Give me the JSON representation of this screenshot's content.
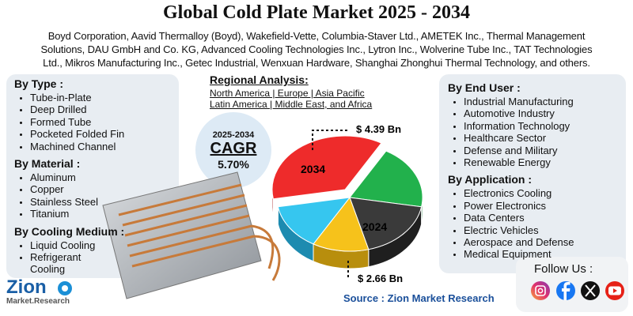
{
  "header": {
    "title": "Global Cold Plate Market 2025 - 2034",
    "companies": [
      "Boyd Corporation, Aavid Thermalloy (Boyd), Wakefield-Vette, Columbia-Staver Ltd., AMETEK Inc., Thermal Management",
      "Solutions, DAU GmbH and Co. KG, Advanced Cooling Technologies Inc., Lytron Inc., Wolverine Tube Inc., TAT Technologies",
      "Ltd., Mikros Manufacturing Inc., Getec Industrial, Wenxuan Hardware, Shanghai Zhonghui Thermal Technology, and others."
    ]
  },
  "regional": {
    "heading": "Regional Analysis:",
    "lines": [
      "North America | Europe | Asia Pacific",
      "Latin America | Middle East, and Africa"
    ]
  },
  "cagr": {
    "period": "2025-2034",
    "label": "CAGR",
    "value": "5.70%"
  },
  "market": {
    "high_value": "$ 4.39 Bn",
    "high_year": "2034",
    "low_value": "$ 2.66 Bn",
    "low_year": "2024"
  },
  "left_segments": [
    {
      "heading": "By Type  :",
      "items": [
        "Tube-in-Plate",
        "Deep Drilled",
        "Formed Tube",
        "Pocketed Folded Fin",
        "Machined Channel"
      ]
    },
    {
      "heading": "By Material :",
      "items": [
        "Aluminum",
        "Copper",
        "Stainless Steel",
        "Titanium"
      ]
    },
    {
      "heading": "By Cooling Medium :",
      "items": [
        "Liquid Cooling",
        "Refrigerant Cooling"
      ]
    }
  ],
  "right_segments": [
    {
      "heading": "By End User :",
      "items": [
        "Industrial Manufacturing",
        "Automotive Industry",
        "Information Technology",
        "Healthcare Sector",
        "Defense and Military",
        "Renewable Energy"
      ]
    },
    {
      "heading": "By Application :",
      "items": [
        "Electronics Cooling",
        "Power Electronics",
        "Data Centers",
        "Electric Vehicles",
        "Aerospace and Defense",
        "Medical Equipment"
      ]
    }
  ],
  "logo": {
    "name": "Zion",
    "sub": "Market.Research"
  },
  "source": "Source : Zion Market Research",
  "follow": "Follow Us :"
}
